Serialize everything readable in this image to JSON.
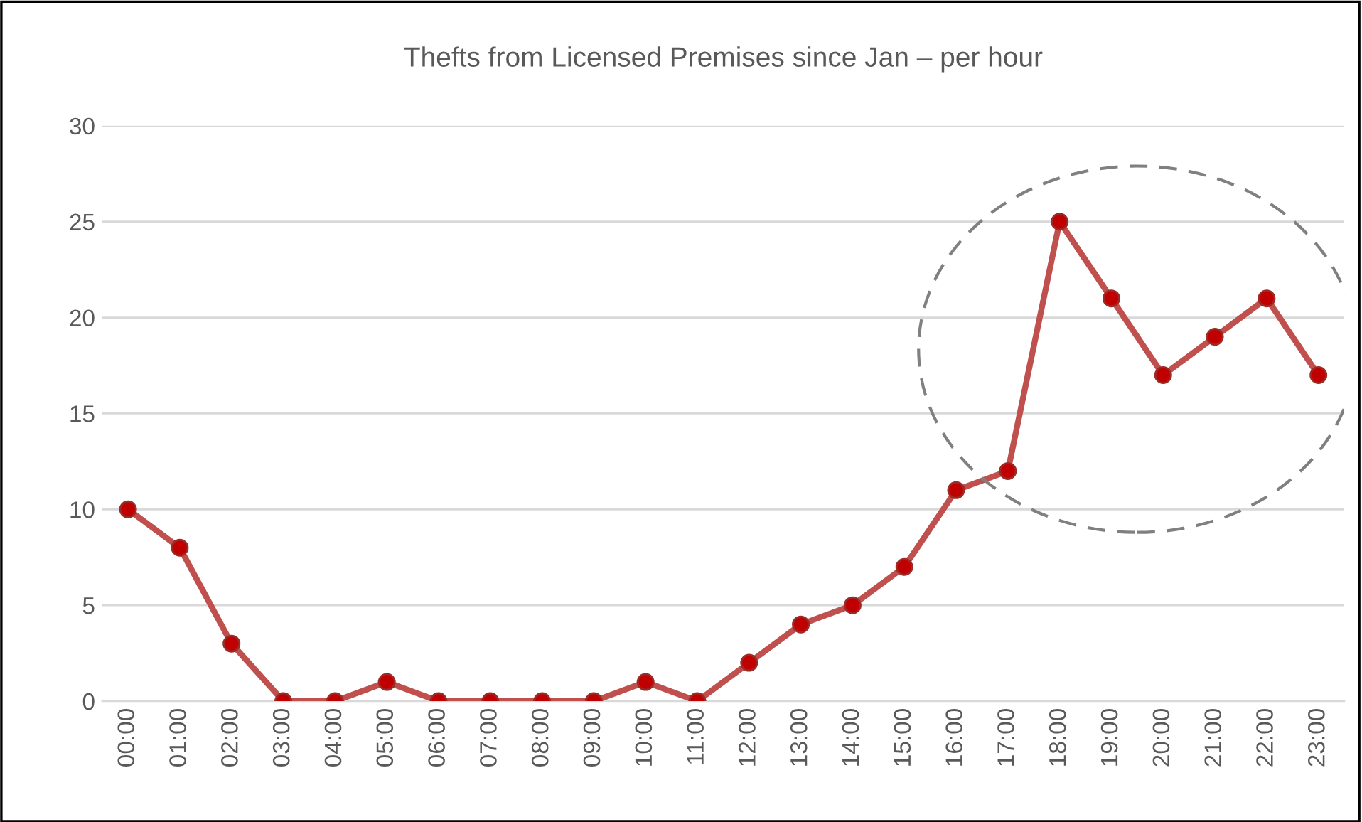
{
  "chart_data": {
    "type": "line",
    "title": "Thefts from Licensed Premises since Jan – per hour",
    "categories": [
      "00:00",
      "01:00",
      "02:00",
      "03:00",
      "04:00",
      "05:00",
      "06:00",
      "07:00",
      "08:00",
      "09:00",
      "10:00",
      "11:00",
      "12:00",
      "13:00",
      "14:00",
      "15:00",
      "16:00",
      "17:00",
      "18:00",
      "19:00",
      "20:00",
      "21:00",
      "22:00",
      "23:00"
    ],
    "series": [
      {
        "color": "#c0504d",
        "values": [
          10,
          8,
          3,
          0,
          0,
          1,
          0,
          0,
          0,
          0,
          1,
          0,
          2,
          4,
          5,
          7,
          11,
          12,
          25,
          21,
          17,
          19,
          21,
          17
        ]
      }
    ],
    "ylim": [
      0,
      30
    ],
    "yticks": [
      0,
      5,
      10,
      15,
      20,
      25,
      30
    ],
    "grid": "y",
    "legend": false,
    "marker": "circle",
    "line_style": "solid"
  }
}
